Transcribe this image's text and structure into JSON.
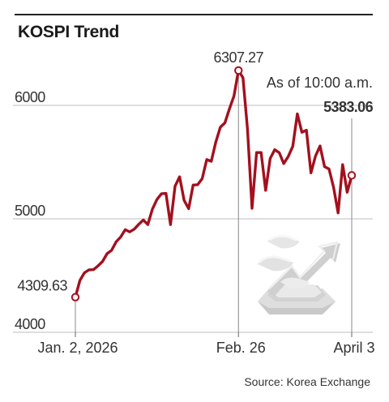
{
  "chart_data": {
    "type": "line",
    "title": "KOSPI Trend",
    "source": "Source: Korea Exchange",
    "y_ticks": [
      "4000",
      "5000",
      "6000"
    ],
    "ylim": [
      4000,
      6000
    ],
    "x_ticks": [
      {
        "label": "Jan. 2, 2026",
        "x": "2026-01-02"
      },
      {
        "label": "Feb. 26",
        "x": "2026-02-26"
      },
      {
        "label": "April 3",
        "x": "2026-04-03"
      }
    ],
    "grid": true,
    "series": [
      {
        "color": "#a3101e",
        "points": [
          [
            "2026-01-02",
            4309.63
          ],
          [
            "2026-01-05",
            4457
          ],
          [
            "2026-01-06",
            4525
          ],
          [
            "2026-01-07",
            4551
          ],
          [
            "2026-01-08",
            4552
          ],
          [
            "2026-01-09",
            4586
          ],
          [
            "2026-01-12",
            4624
          ],
          [
            "2026-01-13",
            4693
          ],
          [
            "2026-01-14",
            4723
          ],
          [
            "2026-01-15",
            4797
          ],
          [
            "2026-01-16",
            4840
          ],
          [
            "2026-01-19",
            4904
          ],
          [
            "2026-01-20",
            4885
          ],
          [
            "2026-01-21",
            4909
          ],
          [
            "2026-01-22",
            4952
          ],
          [
            "2026-01-23",
            4990
          ],
          [
            "2026-01-26",
            4949
          ],
          [
            "2026-01-27",
            5084
          ],
          [
            "2026-01-28",
            5170
          ],
          [
            "2026-01-29",
            5221
          ],
          [
            "2026-01-30",
            5224
          ],
          [
            "2026-02-02",
            4949
          ],
          [
            "2026-02-03",
            5288
          ],
          [
            "2026-02-04",
            5371
          ],
          [
            "2026-02-05",
            5163
          ],
          [
            "2026-02-06",
            5089
          ],
          [
            "2026-02-09",
            5298
          ],
          [
            "2026-02-10",
            5301
          ],
          [
            "2026-02-11",
            5354
          ],
          [
            "2026-02-12",
            5522
          ],
          [
            "2026-02-13",
            5507
          ],
          [
            "2026-02-19",
            5677
          ],
          [
            "2026-02-20",
            5808
          ],
          [
            "2026-02-23",
            5846
          ],
          [
            "2026-02-24",
            5969
          ],
          [
            "2026-02-25",
            6083
          ],
          [
            "2026-02-26",
            6307.27
          ],
          [
            "2026-02-27",
            6244
          ],
          [
            "2026-03-03",
            5791
          ],
          [
            "2026-03-04",
            5093
          ],
          [
            "2026-03-05",
            5584
          ],
          [
            "2026-03-06",
            5584
          ],
          [
            "2026-03-09",
            5251
          ],
          [
            "2026-03-10",
            5532
          ],
          [
            "2026-03-11",
            5609
          ],
          [
            "2026-03-12",
            5583
          ],
          [
            "2026-03-13",
            5487
          ],
          [
            "2026-03-16",
            5549
          ],
          [
            "2026-03-17",
            5640
          ],
          [
            "2026-03-18",
            5925
          ],
          [
            "2026-03-19",
            5763
          ],
          [
            "2026-03-20",
            5781
          ],
          [
            "2026-03-23",
            5405
          ],
          [
            "2026-03-24",
            5553
          ],
          [
            "2026-03-25",
            5642
          ],
          [
            "2026-03-26",
            5460
          ],
          [
            "2026-03-27",
            5439
          ],
          [
            "2026-03-30",
            5278
          ],
          [
            "2026-03-31",
            5052
          ],
          [
            "2026-04-01",
            5478
          ],
          [
            "2026-04-02",
            5234
          ],
          [
            "2026-04-03",
            5383.06
          ]
        ]
      }
    ],
    "annotations": {
      "start": "4309.63",
      "peak": "6307.27",
      "last_caption": "As of 10:00 a.m.",
      "last": "5383.06"
    }
  },
  "illustration": {
    "name": "stock-rising-chart-illustration"
  }
}
